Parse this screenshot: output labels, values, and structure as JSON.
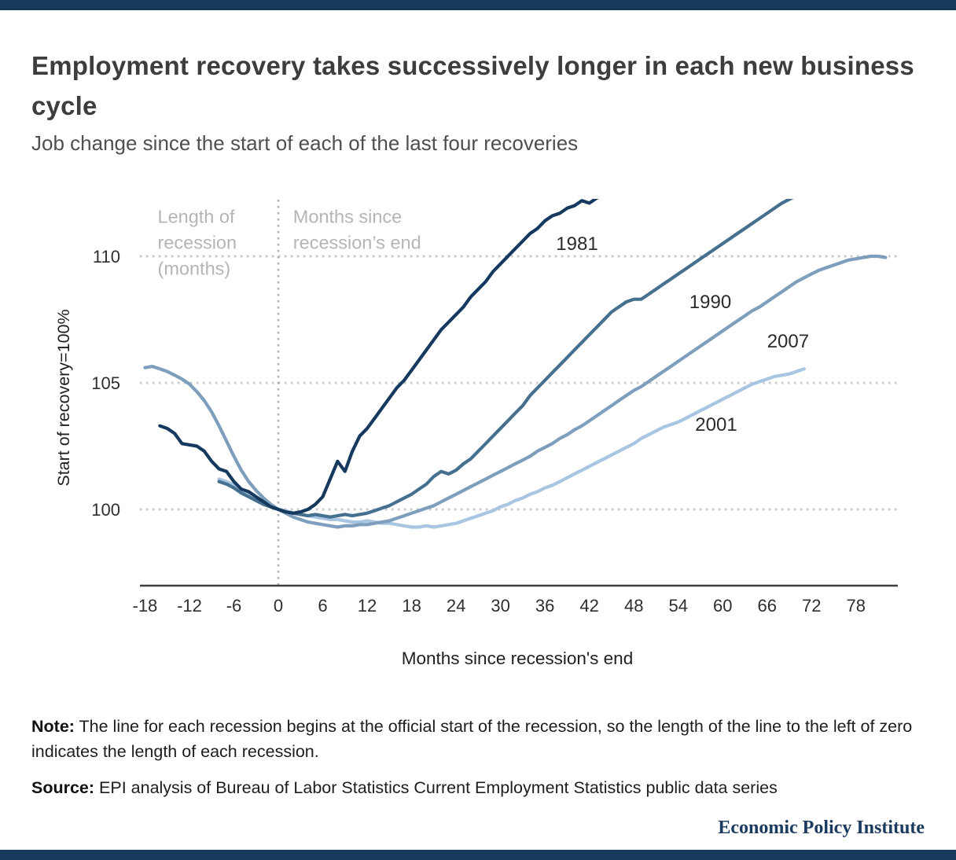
{
  "header": {
    "title": "Employment recovery takes successively longer in each new business cycle",
    "subtitle": "Job change since the start of each of the last four recoveries"
  },
  "chart_data": {
    "type": "line",
    "title": "Employment recovery takes successively longer in each new business cycle",
    "subtitle": "Job change since the start of each of the last four recoveries",
    "x_axis": {
      "label": "Months since recession's end",
      "ticks": [
        -18,
        -12,
        -6,
        0,
        6,
        12,
        18,
        24,
        30,
        36,
        42,
        48,
        54,
        60,
        66,
        72,
        78
      ],
      "range": [
        -20.5,
        83.5
      ],
      "unit": "months"
    },
    "y_axis": {
      "label": "Start of recovery=100%",
      "ticks": [
        100,
        105,
        110
      ],
      "range": [
        96.9,
        112.3
      ],
      "unit": "index, recovery start = 100"
    },
    "grid": {
      "horizontal": "dotted at y ticks",
      "vertical": "dotted line at x=0"
    },
    "annotations": [
      {
        "id": "length-of-recession",
        "lines": [
          "Length of",
          "recession",
          "(months)"
        ],
        "x": -16.3,
        "y": 112.0,
        "color": "#b5b5b5"
      },
      {
        "id": "months-since-recession-end",
        "lines": [
          "Months since",
          "recession’s end"
        ],
        "x": 2,
        "y": 112.0,
        "color": "#b5b5b5"
      }
    ],
    "series": [
      {
        "name": "2001",
        "color": "#a8c5e1",
        "x_start": -8,
        "x_step": 1,
        "label_pos": {
          "x": 56.3,
          "y": 103.1
        },
        "values": [
          101.2,
          101.1,
          100.95,
          100.75,
          100.55,
          100.35,
          100.2,
          100.1,
          100.0,
          99.95,
          99.85,
          99.8,
          99.75,
          99.7,
          99.65,
          99.6,
          99.6,
          99.55,
          99.5,
          99.5,
          99.55,
          99.5,
          99.45,
          99.45,
          99.4,
          99.35,
          99.3,
          99.3,
          99.35,
          99.3,
          99.35,
          99.4,
          99.45,
          99.55,
          99.65,
          99.75,
          99.85,
          99.95,
          100.1,
          100.2,
          100.35,
          100.45,
          100.6,
          100.7,
          100.85,
          100.95,
          101.1,
          101.25,
          101.4,
          101.55,
          101.7,
          101.85,
          102.0,
          102.15,
          102.3,
          102.45,
          102.6,
          102.8,
          102.95,
          103.1,
          103.25,
          103.35,
          103.45,
          103.6,
          103.75,
          103.9,
          104.05,
          104.2,
          104.35,
          104.5,
          104.65,
          104.8,
          104.95,
          105.05,
          105.15,
          105.25,
          105.3,
          105.35,
          105.45,
          105.55
        ]
      },
      {
        "name": "2007",
        "color": "#7d9ebc",
        "x_start": -18,
        "x_step": 1,
        "label_pos": {
          "x": 66,
          "y": 106.4
        },
        "values": [
          105.6,
          105.65,
          105.55,
          105.45,
          105.3,
          105.15,
          104.95,
          104.65,
          104.3,
          103.85,
          103.3,
          102.7,
          102.1,
          101.55,
          101.1,
          100.75,
          100.45,
          100.2,
          100.0,
          99.85,
          99.7,
          99.6,
          99.5,
          99.45,
          99.4,
          99.35,
          99.3,
          99.35,
          99.35,
          99.4,
          99.4,
          99.45,
          99.5,
          99.55,
          99.65,
          99.75,
          99.85,
          99.95,
          100.05,
          100.15,
          100.3,
          100.45,
          100.6,
          100.75,
          100.9,
          101.05,
          101.2,
          101.35,
          101.5,
          101.65,
          101.8,
          101.95,
          102.1,
          102.3,
          102.45,
          102.6,
          102.8,
          102.95,
          103.15,
          103.3,
          103.5,
          103.7,
          103.9,
          104.1,
          104.3,
          104.5,
          104.7,
          104.85,
          105.05,
          105.25,
          105.45,
          105.65,
          105.85,
          106.05,
          106.25,
          106.45,
          106.65,
          106.85,
          107.05,
          107.25,
          107.45,
          107.65,
          107.85,
          108.0,
          108.2,
          108.4,
          108.6,
          108.8,
          109.0,
          109.15,
          109.3,
          109.45,
          109.55,
          109.65,
          109.75,
          109.85,
          109.9,
          109.95,
          110.0,
          110.0,
          109.95
        ]
      },
      {
        "name": "1990",
        "color": "#45708f",
        "x_start": -8,
        "x_step": 1,
        "label_pos": {
          "x": 55.5,
          "y": 107.95
        },
        "values": [
          101.1,
          101.0,
          100.85,
          100.65,
          100.5,
          100.35,
          100.2,
          100.1,
          100.0,
          99.9,
          99.85,
          99.8,
          99.75,
          99.8,
          99.75,
          99.7,
          99.75,
          99.8,
          99.75,
          99.8,
          99.85,
          99.95,
          100.05,
          100.15,
          100.3,
          100.45,
          100.6,
          100.8,
          101.0,
          101.3,
          101.5,
          101.4,
          101.55,
          101.8,
          102.0,
          102.3,
          102.6,
          102.9,
          103.2,
          103.5,
          103.8,
          104.1,
          104.5,
          104.8,
          105.1,
          105.4,
          105.7,
          106.0,
          106.3,
          106.6,
          106.9,
          107.2,
          107.5,
          107.8,
          108.0,
          108.2,
          108.3,
          108.3,
          108.5,
          108.7,
          108.9,
          109.1,
          109.3,
          109.5,
          109.7,
          109.9,
          110.1,
          110.3,
          110.5,
          110.7,
          110.9,
          111.1,
          111.3,
          111.5,
          111.7,
          111.9,
          112.1,
          112.25,
          112.4
        ]
      },
      {
        "name": "1981",
        "color": "#16395f",
        "x_start": -16,
        "x_step": 1,
        "label_pos": {
          "x": 37.5,
          "y": 110.25
        },
        "values": [
          103.3,
          103.2,
          103.0,
          102.6,
          102.55,
          102.5,
          102.3,
          101.9,
          101.6,
          101.5,
          101.1,
          100.8,
          100.7,
          100.5,
          100.3,
          100.1,
          100.0,
          99.9,
          99.85,
          99.9,
          100.0,
          100.2,
          100.5,
          101.2,
          101.9,
          101.5,
          102.3,
          102.9,
          103.2,
          103.6,
          104.0,
          104.4,
          104.8,
          105.1,
          105.5,
          105.9,
          106.3,
          106.7,
          107.1,
          107.4,
          107.7,
          108.0,
          108.4,
          108.7,
          109.0,
          109.4,
          109.7,
          110.0,
          110.3,
          110.6,
          110.9,
          111.1,
          111.4,
          111.6,
          111.7,
          111.9,
          112.0,
          112.2,
          112.1,
          112.3,
          112.4
        ]
      }
    ]
  },
  "footer": {
    "note_prefix": "Note:",
    "note_body": " The line for each recession begins at the official start of the recession, so the length of the line to the left of zero indicates the length of each recession.",
    "source_prefix": "Source:",
    "source_body": " EPI analysis of Bureau of Labor Statistics Current Employment Statistics public data series",
    "branding": "Economic Policy Institute"
  },
  "theme": {
    "accent_bar": "#17395c",
    "title_color": "#3d3d3d",
    "grid_color": "#c9c9c9",
    "zero_line_color": "#ababab",
    "axis_color": "#3f3f3f",
    "tick_color": "#2e2e2e",
    "label_color": "#2b2b2b",
    "annotation_color": "#b5b5b5"
  }
}
